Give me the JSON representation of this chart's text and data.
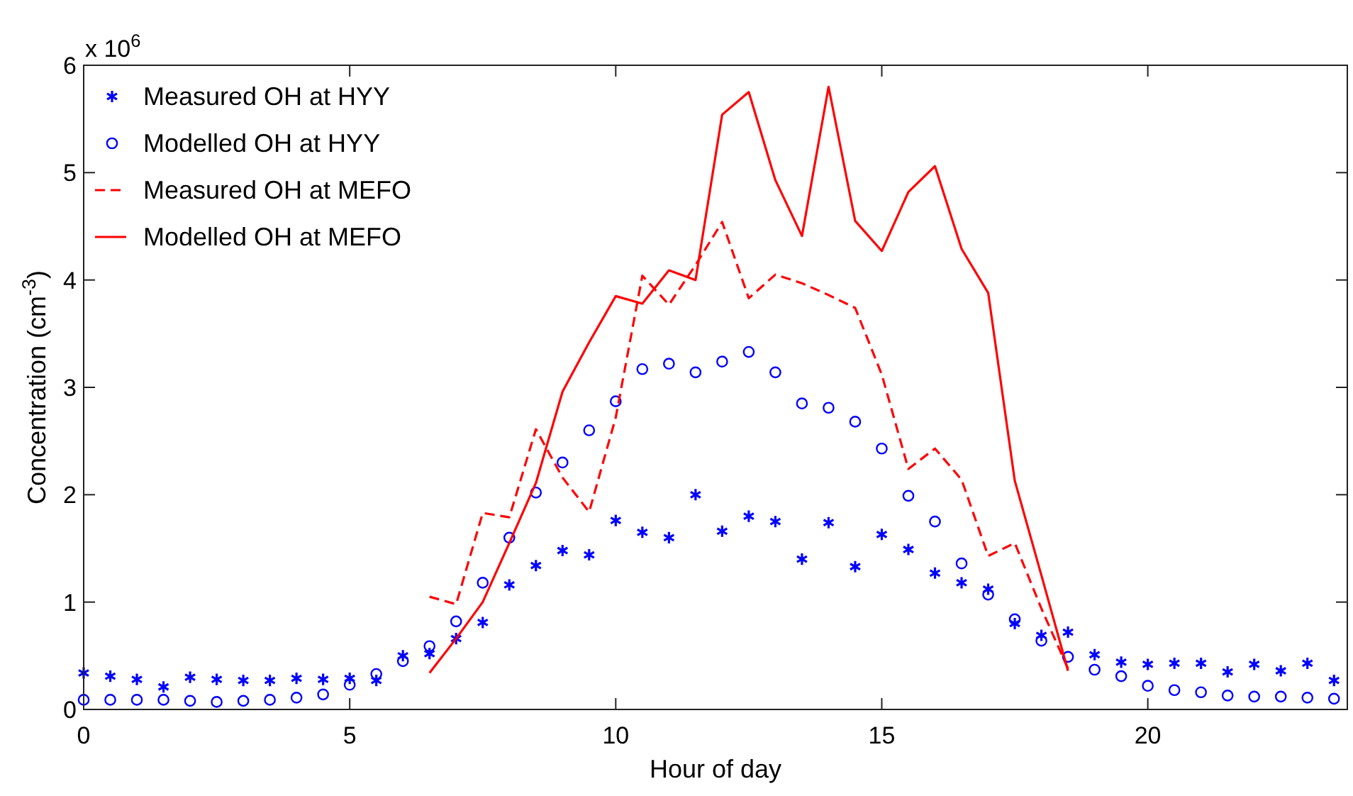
{
  "chart_data": {
    "type": "line",
    "xlabel": "Hour of day",
    "ylabel": "Concentration (cm$^{-3}$)",
    "annotations": [
      "x 10$^{6}$"
    ],
    "x": [
      0,
      0.5,
      1,
      1.5,
      2,
      2.5,
      3,
      3.5,
      4,
      4.5,
      5,
      5.5,
      6,
      6.5,
      7,
      7.5,
      8,
      8.5,
      9,
      9.5,
      10,
      10.5,
      11,
      11.5,
      12,
      12.5,
      13,
      13.5,
      14,
      14.5,
      15,
      15.5,
      16,
      16.5,
      17,
      17.5,
      18,
      18.5,
      19,
      19.5,
      20,
      20.5,
      21,
      21.5,
      22,
      22.5,
      23,
      23.5
    ],
    "xlim": [
      0,
      23.75
    ],
    "xticks": [
      0,
      5,
      10,
      15,
      20
    ],
    "ylim": [
      0,
      6
    ],
    "yticks": [
      0,
      1,
      2,
      3,
      4,
      5,
      6
    ],
    "grid": false,
    "legend": "top left",
    "series": [
      {
        "name": "Measured OH at HYY",
        "type": "scatter",
        "marker": "cross",
        "color": "#0000ff",
        "values": [
          0.34,
          0.31,
          0.28,
          0.21,
          0.3,
          0.28,
          0.27,
          0.27,
          0.29,
          0.28,
          0.29,
          0.27,
          0.5,
          0.52,
          0.66,
          0.81,
          1.16,
          1.34,
          1.48,
          1.44,
          1.76,
          1.65,
          1.6,
          2.0,
          1.66,
          1.8,
          1.75,
          1.4,
          1.74,
          1.33,
          1.63,
          1.49,
          1.27,
          1.18,
          1.12,
          0.8,
          0.69,
          0.72,
          0.51,
          0.44,
          0.42,
          0.43,
          0.43,
          0.35,
          0.42,
          0.36,
          0.43,
          0.27
        ]
      },
      {
        "name": "Modelled OH at HYY",
        "type": "scatter",
        "marker": "circle",
        "color": "#0000ff",
        "values": [
          0.09,
          0.09,
          0.09,
          0.09,
          0.08,
          0.07,
          0.08,
          0.09,
          0.11,
          0.14,
          0.23,
          0.33,
          0.45,
          0.59,
          0.82,
          1.18,
          1.6,
          2.02,
          2.3,
          2.6,
          2.87,
          3.17,
          3.22,
          3.14,
          3.24,
          3.33,
          3.14,
          2.85,
          2.81,
          2.68,
          2.43,
          1.99,
          1.75,
          1.36,
          1.07,
          0.84,
          0.64,
          0.49,
          0.37,
          0.31,
          0.22,
          0.18,
          0.16,
          0.13,
          0.12,
          0.12,
          0.11,
          0.1
        ]
      },
      {
        "name": "Measured OH at MEFO",
        "line_style": "dashed",
        "color": "#ff0000",
        "x": [
          6.5,
          7,
          7.5,
          8,
          8.5,
          9,
          9.5,
          10,
          10.5,
          11,
          11.5,
          12,
          12.5,
          13,
          13.5,
          14,
          14.5,
          15,
          15.5,
          16,
          16.5,
          17,
          17.5,
          18,
          18.5
        ],
        "values": [
          1.05,
          0.98,
          1.83,
          1.79,
          2.61,
          2.16,
          1.84,
          2.72,
          4.04,
          3.77,
          4.14,
          4.54,
          3.83,
          4.05,
          3.97,
          3.86,
          3.74,
          3.12,
          2.24,
          2.43,
          2.14,
          1.43,
          1.55,
          0.94,
          0.38
        ]
      },
      {
        "name": "Modelled OH at MEFO",
        "line_style": "solid",
        "color": "#ff0000",
        "x": [
          6.5,
          7,
          7.5,
          8,
          8.5,
          9,
          9.5,
          10,
          10.5,
          11,
          11.5,
          12,
          12.5,
          13,
          13.5,
          14,
          14.5,
          15,
          15.5,
          16,
          16.5,
          17,
          17.5,
          18,
          18.5
        ],
        "values": [
          0.34,
          0.66,
          1.0,
          1.55,
          2.11,
          2.96,
          3.42,
          3.85,
          3.78,
          4.09,
          4.0,
          5.54,
          5.75,
          4.93,
          4.41,
          5.8,
          4.55,
          4.27,
          4.82,
          5.06,
          4.29,
          3.88,
          2.13,
          1.25,
          0.36
        ]
      }
    ]
  }
}
